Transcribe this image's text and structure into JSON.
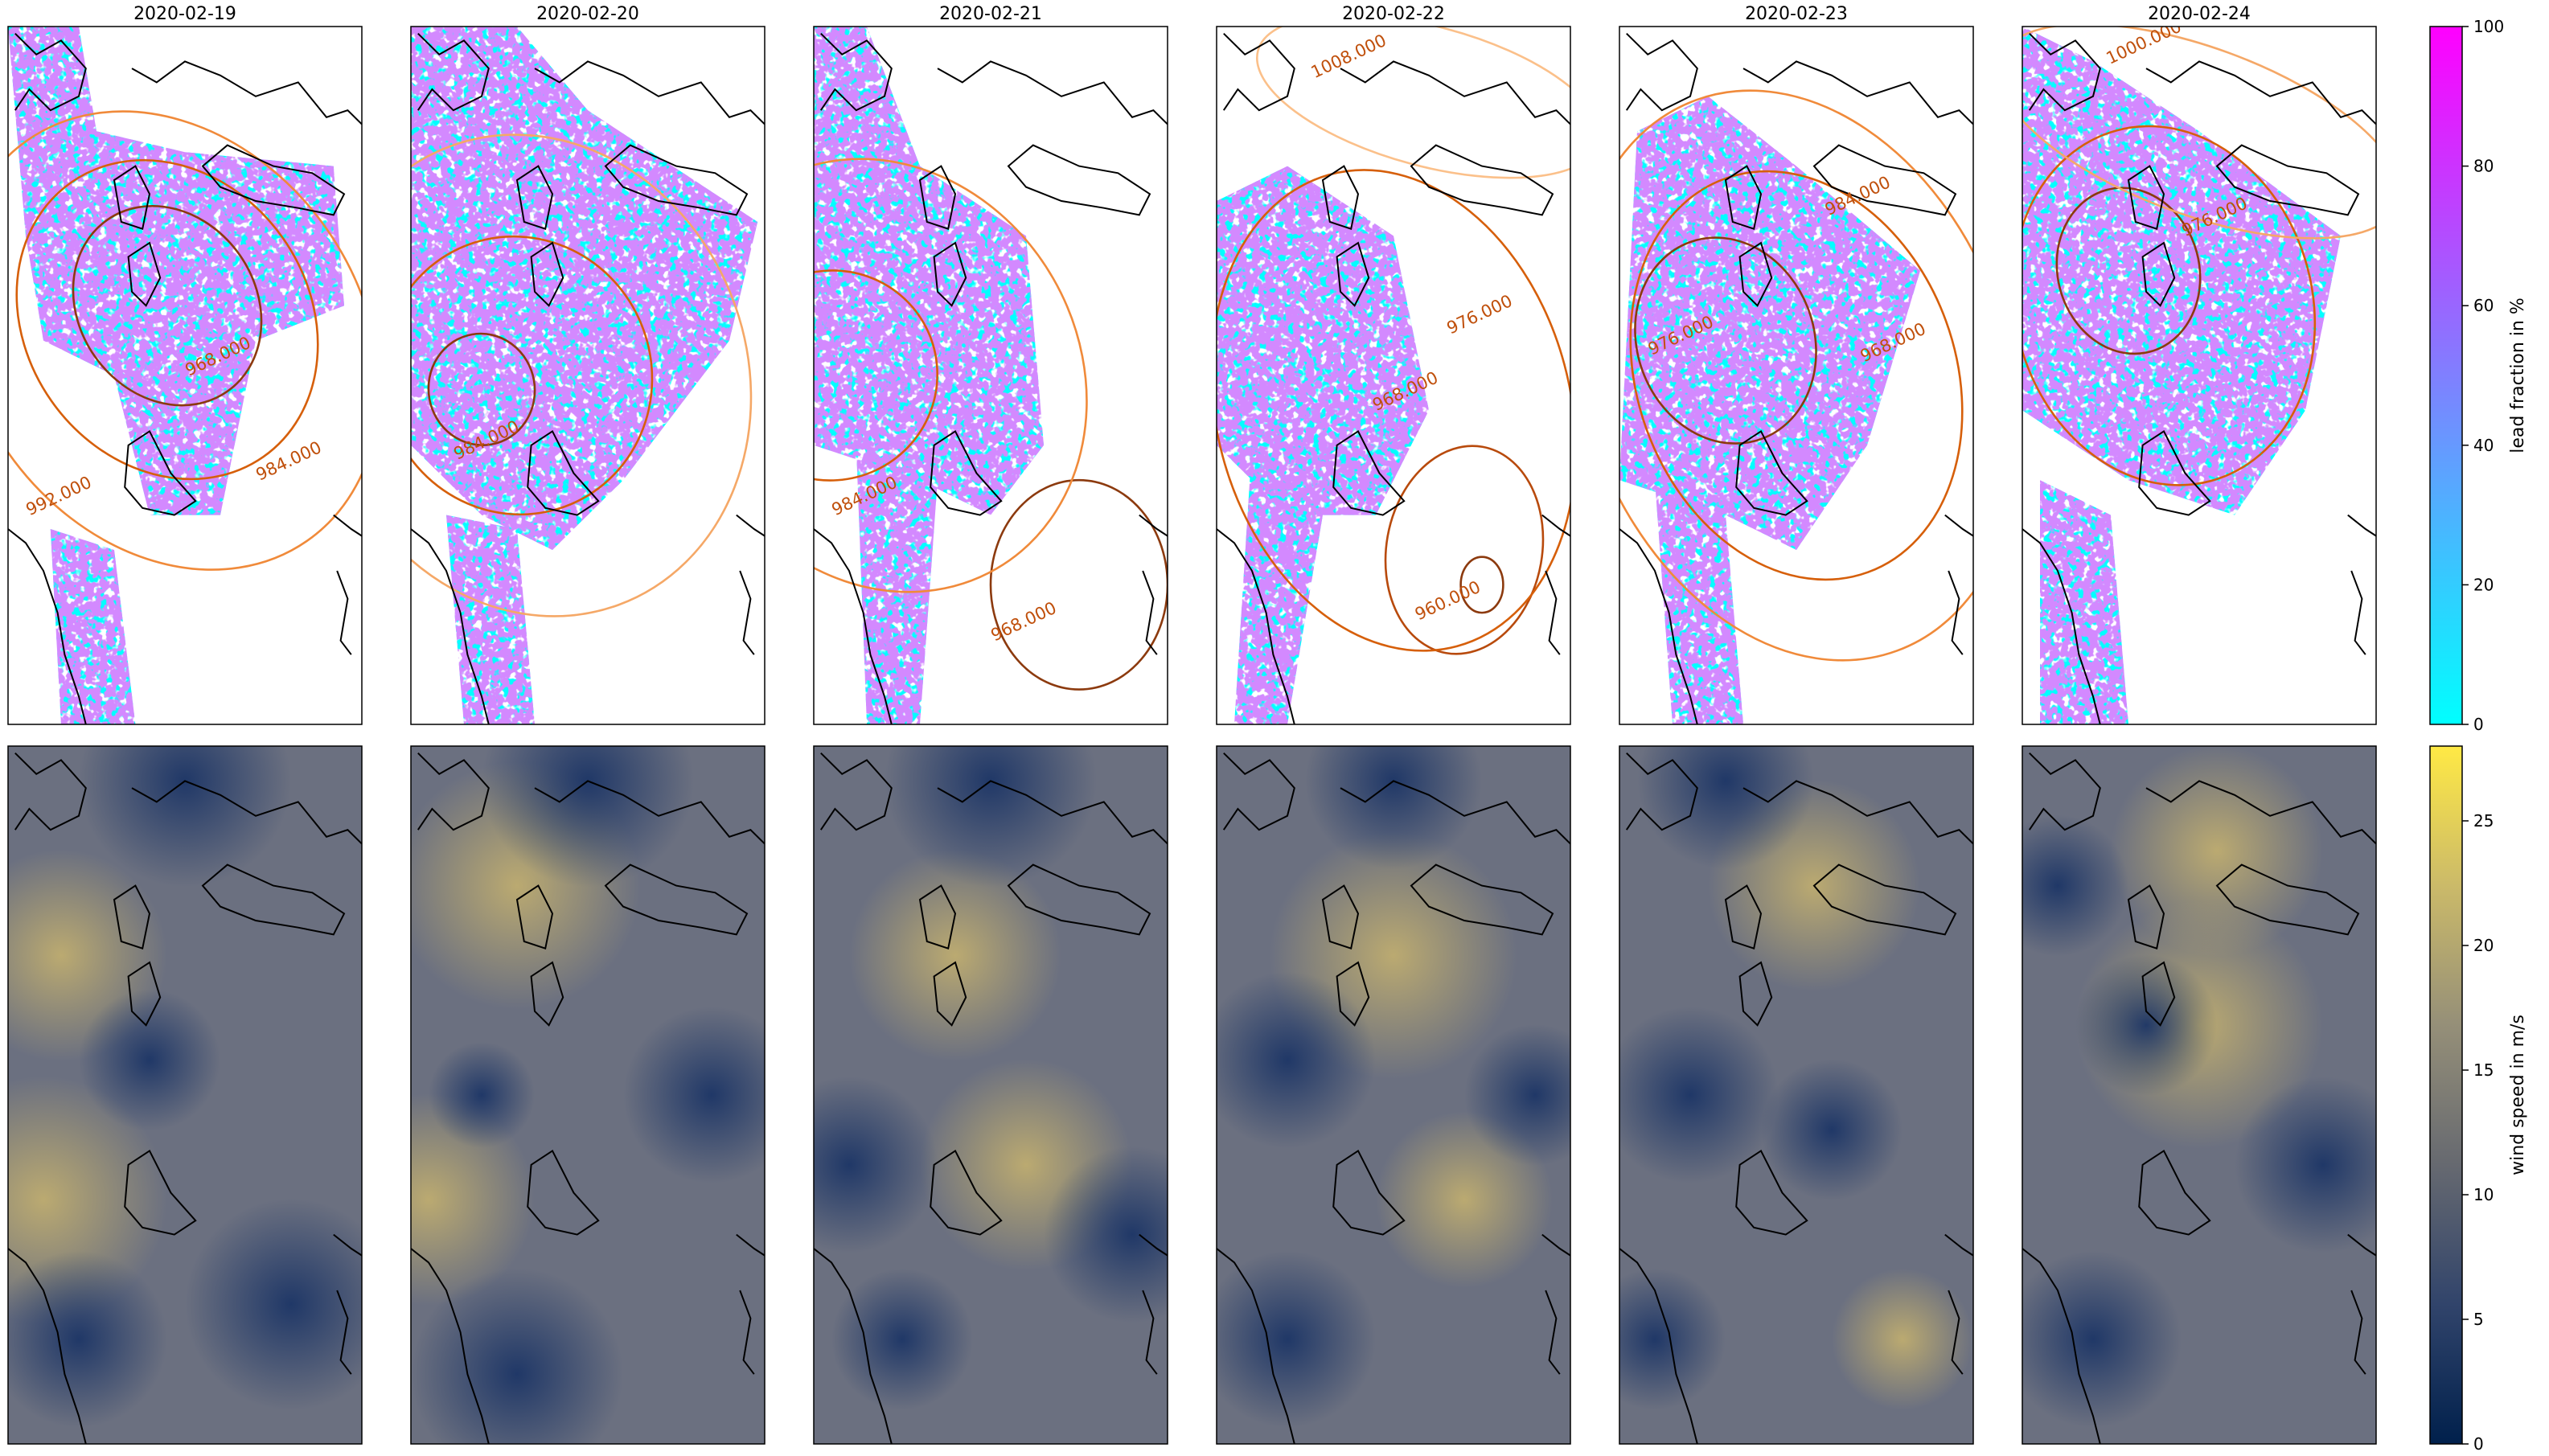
{
  "dates": [
    "2020-02-19",
    "2020-02-20",
    "2020-02-21",
    "2020-02-22",
    "2020-02-23",
    "2020-02-24"
  ],
  "lead_colorbar": {
    "label": "lead fraction in %",
    "ticks": [
      "0",
      "20",
      "40",
      "60",
      "80",
      "100"
    ],
    "range": [
      0,
      100
    ],
    "colors": [
      "#00ffff",
      "#ff00ff"
    ]
  },
  "wind_colorbar": {
    "label": "wind speed in m/s",
    "ticks": [
      "0",
      "5",
      "10",
      "15",
      "20",
      "25"
    ],
    "range": [
      0,
      28
    ],
    "colors": [
      "#00204c",
      "#31446b",
      "#666970",
      "#958f78",
      "#cbba69",
      "#ffe945"
    ]
  },
  "contour_labels": [
    [
      "968.000",
      "984.000",
      "992.000"
    ],
    [
      "984.000"
    ],
    [
      "984.000",
      "968.000"
    ],
    [
      "1008.000",
      "976.000",
      "968.000",
      "960.000"
    ],
    [
      "984.000",
      "976.000",
      "968.000"
    ],
    [
      "1000.000",
      "976.000"
    ]
  ]
}
